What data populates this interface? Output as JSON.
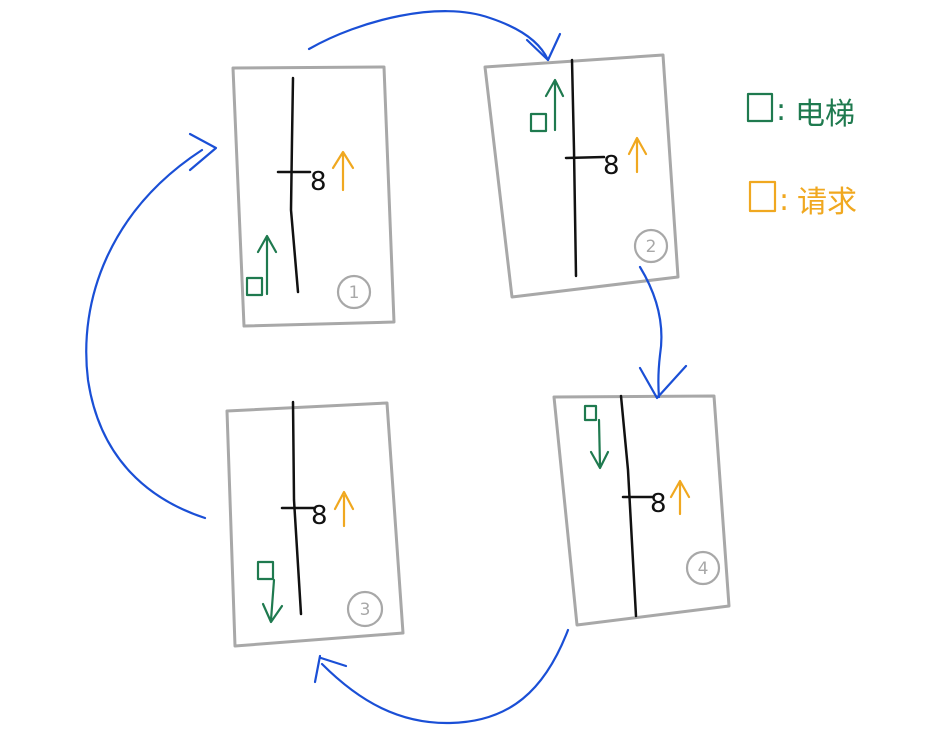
{
  "colors": {
    "elevator": "#1f7a4f",
    "request": "#f0a820",
    "flow": "#1a4fd6",
    "frame": "#a8a8a8",
    "shaft": "#111111"
  },
  "legend": {
    "elevator_label": "电梯",
    "request_label": "请求",
    "separator": ":"
  },
  "panels": [
    {
      "id": "1",
      "number": "1",
      "floor": "8",
      "elevator_direction": "up",
      "request_direction": "up"
    },
    {
      "id": "2",
      "number": "2",
      "floor": "8",
      "elevator_direction": "up",
      "request_direction": "up"
    },
    {
      "id": "4",
      "number": "4",
      "floor": "8",
      "elevator_direction": "down",
      "request_direction": "up"
    },
    {
      "id": "3",
      "number": "3",
      "floor": "8",
      "elevator_direction": "down",
      "request_direction": "up"
    }
  ],
  "flow_sequence": [
    "1",
    "2",
    "4",
    "3",
    "1"
  ]
}
